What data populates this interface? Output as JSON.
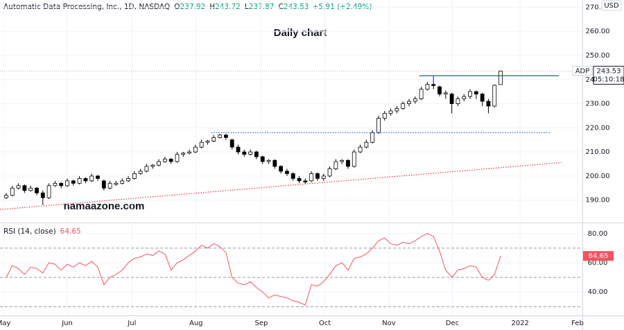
{
  "chart_data": [
    {
      "type": "candlestick",
      "title": "Automatic Data Processing, Inc., 1D, NASDAQ",
      "ohlc_prefixes": [
        "O",
        "H",
        "L",
        "C"
      ],
      "change_label": "+5.91 (+2.49%)",
      "symbol": "ADP",
      "countdown": "05:10:18",
      "currency": "USD",
      "annotations": [
        "Daily chart",
        "namaazone.com"
      ],
      "up_color": "#ffffff",
      "down_color": "#000000",
      "wick_color": "#000000",
      "candles": [
        [
          191,
          193,
          190.5,
          192
        ],
        [
          192,
          196,
          191.5,
          195
        ],
        [
          195,
          197,
          194.5,
          196
        ],
        [
          196,
          196.5,
          193,
          194
        ],
        [
          194,
          196,
          193.5,
          195
        ],
        [
          195,
          195.5,
          192,
          193
        ],
        [
          193,
          194,
          188,
          191
        ],
        [
          191,
          197,
          190.5,
          196
        ],
        [
          196,
          198,
          195.5,
          197
        ],
        [
          197,
          197.5,
          195,
          196
        ],
        [
          196,
          199,
          195.5,
          198
        ],
        [
          198,
          198.5,
          196,
          197
        ],
        [
          197,
          200,
          196.5,
          199
        ],
        [
          199,
          199.5,
          197,
          198
        ],
        [
          198,
          201,
          197.5,
          200
        ],
        [
          200,
          200.5,
          198,
          199
        ],
        [
          198,
          198.5,
          194,
          195
        ],
        [
          195,
          198,
          194.5,
          197
        ],
        [
          196.5,
          198,
          196,
          197
        ],
        [
          197,
          199,
          196.5,
          198
        ],
        [
          198,
          200,
          197.5,
          199
        ],
        [
          199,
          202,
          198.5,
          201
        ],
        [
          201,
          203,
          200.5,
          202
        ],
        [
          202,
          205,
          201.5,
          204
        ],
        [
          204,
          205,
          203,
          204.5
        ],
        [
          204.5,
          207,
          204,
          206
        ],
        [
          206,
          208,
          205.5,
          207
        ],
        [
          207,
          207.5,
          205,
          206
        ],
        [
          206,
          210,
          205.5,
          209
        ],
        [
          209,
          210,
          208,
          209.5
        ],
        [
          209.5,
          211,
          209,
          210
        ],
        [
          210,
          213,
          209.5,
          212
        ],
        [
          212,
          215,
          211.5,
          214
        ],
        [
          214,
          215,
          213,
          214.5
        ],
        [
          214.5,
          217,
          214,
          216
        ],
        [
          216,
          217.5,
          215.5,
          217
        ],
        [
          217,
          217.5,
          215,
          216
        ],
        [
          215,
          215.5,
          211,
          212
        ],
        [
          212,
          213,
          209,
          210
        ],
        [
          210,
          211,
          208,
          209
        ],
        [
          209,
          211,
          208.5,
          210
        ],
        [
          210,
          210.5,
          207,
          208
        ],
        [
          208,
          208.5,
          205,
          206
        ],
        [
          206,
          207,
          205,
          206.5
        ],
        [
          206.5,
          207,
          203,
          204
        ],
        [
          204,
          204.5,
          201,
          202
        ],
        [
          202,
          203,
          200,
          201
        ],
        [
          201,
          201.5,
          198,
          199
        ],
        [
          199,
          200,
          197,
          198
        ],
        [
          198,
          199,
          196.5,
          197.5
        ],
        [
          198,
          202,
          197.5,
          201
        ],
        [
          201,
          201.5,
          198,
          199
        ],
        [
          199,
          201,
          198,
          200
        ],
        [
          200,
          204,
          199.5,
          203
        ],
        [
          203,
          207,
          202.5,
          206
        ],
        [
          206,
          207,
          205,
          206.5
        ],
        [
          206.5,
          207,
          203,
          204
        ],
        [
          204,
          211,
          203.5,
          210
        ],
        [
          210,
          213,
          209.5,
          212
        ],
        [
          212,
          215,
          211.5,
          214
        ],
        [
          214,
          219,
          213.5,
          218
        ],
        [
          218,
          225,
          217.5,
          224
        ],
        [
          224,
          227,
          223,
          226
        ],
        [
          226,
          228,
          225,
          227
        ],
        [
          227,
          229,
          226,
          228
        ],
        [
          228,
          231,
          227.5,
          230
        ],
        [
          230,
          232,
          229,
          231
        ],
        [
          231,
          233,
          230,
          232
        ],
        [
          232,
          237,
          231.5,
          236
        ],
        [
          236,
          239,
          235.5,
          238
        ],
        [
          238,
          239.5,
          236,
          237.5
        ],
        [
          237,
          237.5,
          233,
          234
        ],
        [
          234,
          235.5,
          232,
          234.5
        ],
        [
          234,
          234.5,
          226,
          230
        ],
        [
          230,
          233,
          229,
          232
        ],
        [
          232,
          234,
          231,
          233
        ],
        [
          233,
          236,
          232,
          235
        ],
        [
          235,
          235.5,
          232,
          234
        ],
        [
          234,
          234.5,
          229,
          231
        ],
        [
          231,
          232,
          226,
          229
        ],
        [
          229,
          238,
          228.5,
          237.62
        ],
        [
          237.92,
          243.72,
          237.87,
          243.53
        ]
      ],
      "trendlines": [
        {
          "color": "#1e53e5",
          "style": "solid",
          "from": [
            67.7,
            241.6
          ],
          "to": [
            90.5,
            241.6
          ]
        },
        {
          "color": "#1e53e5",
          "style": "solid",
          "from": [
            70,
            241.6
          ],
          "to": [
            70,
            238.5
          ]
        },
        {
          "color": "#1e53e5",
          "style": "dotted",
          "from": [
            33.6,
            218
          ],
          "to": [
            89.3,
            218
          ]
        },
        {
          "color": "#f23645",
          "style": "dotted",
          "from": [
            -1.02,
            186.1
          ],
          "to": [
            91,
            205.6
          ]
        }
      ],
      "xlim": [
        -1.02,
        94.4
      ],
      "xticks": [
        {
          "value": -0.45,
          "label": "May"
        },
        {
          "value": 10,
          "label": "Jun"
        },
        {
          "value": 20.6,
          "label": "Jul"
        },
        {
          "value": 31.1,
          "label": "Aug"
        },
        {
          "value": 41.8,
          "label": "Sep"
        },
        {
          "value": 52.2,
          "label": "Oct"
        },
        {
          "value": 62.7,
          "label": "Nov"
        },
        {
          "value": 73.1,
          "label": "Dec"
        },
        {
          "value": 84.2,
          "label": "2022"
        },
        {
          "value": 93.6,
          "label": "Feb"
        }
      ],
      "ylim": [
        181,
        273
      ],
      "yticks": [
        {
          "value": 190,
          "label": "190.00"
        },
        {
          "value": 200,
          "label": "200.00"
        },
        {
          "value": 210,
          "label": "210.00"
        },
        {
          "value": 220,
          "label": "220.00"
        },
        {
          "value": 230,
          "label": "230.00"
        },
        {
          "value": 240,
          "label": "240.00"
        },
        {
          "value": 250,
          "label": "250.00"
        },
        {
          "value": 260,
          "label": "260.00"
        },
        {
          "value": 270,
          "label": "270.00"
        }
      ]
    },
    {
      "type": "line",
      "title": "RSI (14, close)",
      "series": [
        {
          "name": "RSI",
          "color": "#f7525f",
          "values": [
            50,
            58,
            56,
            52,
            57,
            56,
            53,
            60,
            59,
            55,
            59,
            57,
            60,
            58,
            61,
            57,
            45,
            50,
            52,
            55,
            60,
            63,
            64,
            66,
            65,
            68,
            66,
            55,
            60,
            62,
            65,
            68,
            72,
            70,
            73,
            71,
            67,
            50,
            46,
            45,
            47,
            43,
            40,
            36,
            38,
            37,
            36,
            34,
            33,
            31,
            45,
            44,
            47,
            52,
            58,
            60,
            55,
            63,
            64,
            66,
            70,
            75,
            77,
            73,
            72,
            74,
            73,
            75,
            78,
            80,
            78,
            68,
            55,
            50,
            55,
            56,
            58,
            57,
            50,
            48,
            52,
            64.65
          ]
        }
      ],
      "levels": [
        70,
        50,
        30
      ],
      "ylim": [
        24,
        87
      ],
      "yticks": [
        {
          "value": 40,
          "label": "40.00"
        },
        {
          "value": 60,
          "label": "60.00"
        },
        {
          "value": 80,
          "label": "80.00"
        }
      ]
    }
  ]
}
